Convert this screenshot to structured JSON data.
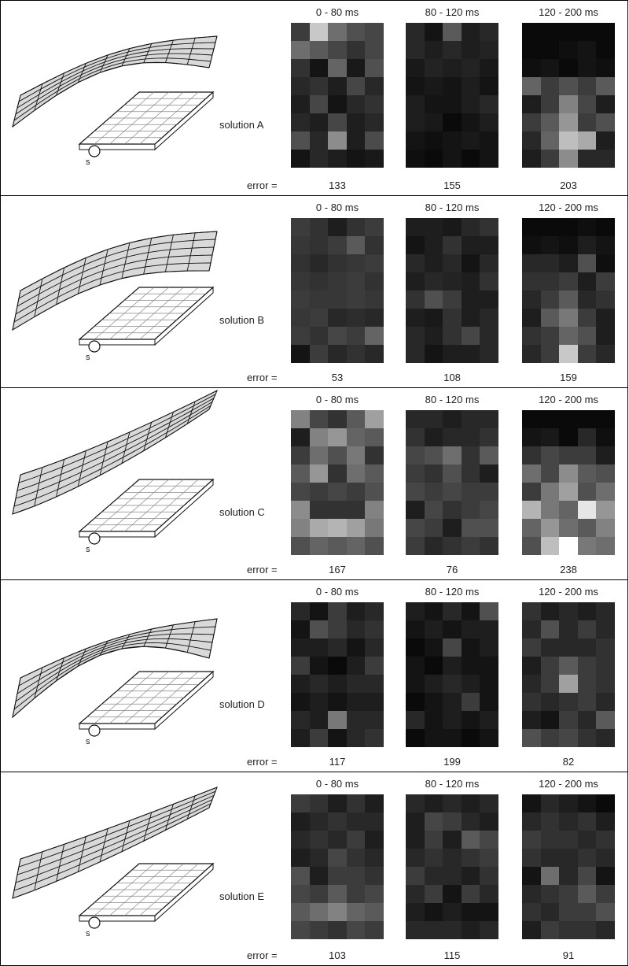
{
  "error_label": "error =",
  "source_label": "s",
  "panels": [
    {
      "label": "solution A",
      "surface": "A",
      "columns": [
        {
          "time": "0 - 80 ms",
          "error": "133",
          "cells": [
            [
              60,
              200,
              110,
              80,
              70
            ],
            [
              110,
              90,
              70,
              50,
              70
            ],
            [
              50,
              20,
              100,
              25,
              80
            ],
            [
              40,
              50,
              30,
              70,
              40
            ],
            [
              30,
              70,
              20,
              40,
              50
            ],
            [
              40,
              30,
              70,
              30,
              40
            ],
            [
              80,
              40,
              140,
              30,
              75
            ],
            [
              20,
              40,
              30,
              20,
              25
            ]
          ]
        },
        {
          "time": "80 - 120 ms",
          "error": "155",
          "cells": [
            [
              40,
              20,
              90,
              30,
              40
            ],
            [
              40,
              30,
              40,
              30,
              35
            ],
            [
              25,
              35,
              30,
              35,
              25
            ],
            [
              20,
              25,
              20,
              30,
              20
            ],
            [
              30,
              20,
              20,
              30,
              40
            ],
            [
              30,
              25,
              10,
              20,
              30
            ],
            [
              20,
              15,
              20,
              25,
              20
            ],
            [
              15,
              10,
              20,
              10,
              20
            ]
          ]
        },
        {
          "time": "120 - 200 ms",
          "error": "203",
          "cells": [
            [
              10,
              10,
              10,
              10,
              10
            ],
            [
              10,
              10,
              15,
              20,
              10
            ],
            [
              15,
              20,
              10,
              20,
              15
            ],
            [
              100,
              60,
              80,
              60,
              90
            ],
            [
              30,
              60,
              130,
              70,
              30
            ],
            [
              60,
              90,
              150,
              60,
              80
            ],
            [
              40,
              100,
              190,
              170,
              30
            ],
            [
              30,
              60,
              140,
              40,
              40
            ]
          ]
        }
      ]
    },
    {
      "label": "solution B",
      "surface": "B",
      "columns": [
        {
          "time": "0 - 80 ms",
          "error": "53",
          "cells": [
            [
              60,
              50,
              30,
              50,
              60
            ],
            [
              55,
              50,
              60,
              90,
              50
            ],
            [
              50,
              40,
              50,
              55,
              60
            ],
            [
              55,
              50,
              55,
              60,
              50
            ],
            [
              60,
              55,
              55,
              60,
              55
            ],
            [
              55,
              60,
              40,
              45,
              40
            ],
            [
              60,
              50,
              70,
              60,
              100
            ],
            [
              20,
              60,
              40,
              50,
              40
            ]
          ]
        },
        {
          "time": "80 - 120 ms",
          "error": "108",
          "cells": [
            [
              30,
              30,
              25,
              40,
              50
            ],
            [
              20,
              30,
              50,
              30,
              30
            ],
            [
              40,
              30,
              40,
              20,
              40
            ],
            [
              30,
              40,
              35,
              30,
              50
            ],
            [
              50,
              80,
              60,
              30,
              30
            ],
            [
              30,
              25,
              50,
              30,
              40
            ],
            [
              40,
              30,
              50,
              70,
              40
            ],
            [
              40,
              20,
              30,
              30,
              40
            ]
          ]
        },
        {
          "time": "120 - 200 ms",
          "error": "159",
          "cells": [
            [
              10,
              10,
              10,
              15,
              10
            ],
            [
              15,
              20,
              15,
              30,
              20
            ],
            [
              40,
              40,
              30,
              80,
              15
            ],
            [
              50,
              50,
              60,
              30,
              60
            ],
            [
              40,
              60,
              90,
              40,
              50
            ],
            [
              30,
              90,
              120,
              60,
              30
            ],
            [
              50,
              60,
              100,
              80,
              30
            ],
            [
              40,
              60,
              200,
              60,
              40
            ]
          ]
        }
      ]
    },
    {
      "label": "solution C",
      "surface": "C",
      "columns": [
        {
          "time": "0 - 80 ms",
          "error": "167",
          "cells": [
            [
              130,
              70,
              50,
              90,
              160
            ],
            [
              30,
              130,
              150,
              100,
              90
            ],
            [
              60,
              110,
              80,
              120,
              50
            ],
            [
              90,
              150,
              50,
              110,
              90
            ],
            [
              70,
              60,
              70,
              60,
              80
            ],
            [
              140,
              50,
              50,
              50,
              130
            ],
            [
              130,
              170,
              180,
              160,
              120
            ],
            [
              80,
              100,
              90,
              100,
              80
            ]
          ]
        },
        {
          "time": "80 - 120 ms",
          "error": "76",
          "cells": [
            [
              40,
              40,
              30,
              40,
              40
            ],
            [
              50,
              30,
              40,
              40,
              50
            ],
            [
              70,
              80,
              110,
              50,
              90
            ],
            [
              60,
              50,
              80,
              50,
              30
            ],
            [
              70,
              60,
              70,
              60,
              60
            ],
            [
              30,
              70,
              50,
              60,
              70
            ],
            [
              70,
              60,
              30,
              80,
              80
            ],
            [
              60,
              40,
              50,
              60,
              50
            ]
          ]
        },
        {
          "time": "120 - 200 ms",
          "error": "238",
          "cells": [
            [
              10,
              10,
              10,
              10,
              10
            ],
            [
              20,
              25,
              10,
              40,
              15
            ],
            [
              50,
              70,
              60,
              60,
              30
            ],
            [
              110,
              70,
              140,
              90,
              80
            ],
            [
              60,
              120,
              160,
              80,
              110
            ],
            [
              180,
              120,
              100,
              230,
              150
            ],
            [
              100,
              150,
              110,
              90,
              130
            ],
            [
              80,
              190,
              255,
              120,
              110
            ]
          ]
        }
      ]
    },
    {
      "label": "solution D",
      "surface": "D",
      "columns": [
        {
          "time": "0 - 80 ms",
          "error": "117",
          "cells": [
            [
              40,
              20,
              60,
              30,
              40
            ],
            [
              20,
              80,
              60,
              40,
              50
            ],
            [
              30,
              30,
              40,
              20,
              40
            ],
            [
              60,
              20,
              10,
              30,
              60
            ],
            [
              30,
              40,
              30,
              40,
              40
            ],
            [
              20,
              30,
              20,
              30,
              30
            ],
            [
              40,
              30,
              120,
              40,
              40
            ],
            [
              30,
              60,
              20,
              40,
              50
            ]
          ]
        },
        {
          "time": "80 - 120 ms",
          "error": "199",
          "cells": [
            [
              30,
              20,
              40,
              20,
              80
            ],
            [
              20,
              30,
              20,
              30,
              30
            ],
            [
              10,
              20,
              70,
              20,
              30
            ],
            [
              20,
              10,
              30,
              20,
              20
            ],
            [
              20,
              30,
              40,
              30,
              20
            ],
            [
              10,
              20,
              30,
              60,
              20
            ],
            [
              40,
              20,
              30,
              20,
              30
            ],
            [
              10,
              20,
              20,
              10,
              20
            ]
          ]
        },
        {
          "time": "120 - 200 ms",
          "error": "82",
          "cells": [
            [
              50,
              30,
              40,
              30,
              40
            ],
            [
              40,
              80,
              40,
              60,
              40
            ],
            [
              60,
              40,
              40,
              40,
              50
            ],
            [
              30,
              60,
              90,
              60,
              50
            ],
            [
              40,
              60,
              160,
              60,
              50
            ],
            [
              50,
              40,
              50,
              60,
              40
            ],
            [
              30,
              20,
              60,
              40,
              90
            ],
            [
              80,
              60,
              70,
              50,
              40
            ]
          ]
        }
      ]
    },
    {
      "label": "solution E",
      "surface": "E",
      "columns": [
        {
          "time": "0 - 80 ms",
          "error": "103",
          "cells": [
            [
              60,
              50,
              30,
              50,
              30
            ],
            [
              30,
              40,
              50,
              40,
              40
            ],
            [
              40,
              50,
              40,
              60,
              30
            ],
            [
              30,
              40,
              70,
              50,
              40
            ],
            [
              80,
              30,
              60,
              60,
              50
            ],
            [
              70,
              60,
              90,
              60,
              70
            ],
            [
              90,
              110,
              130,
              100,
              90
            ],
            [
              70,
              60,
              50,
              70,
              60
            ]
          ]
        },
        {
          "time": "80 - 120 ms",
          "error": "115",
          "cells": [
            [
              40,
              30,
              40,
              30,
              40
            ],
            [
              30,
              70,
              60,
              40,
              30
            ],
            [
              30,
              60,
              30,
              90,
              70
            ],
            [
              40,
              50,
              40,
              50,
              60
            ],
            [
              60,
              40,
              40,
              30,
              50
            ],
            [
              40,
              60,
              20,
              60,
              40
            ],
            [
              30,
              20,
              30,
              20,
              20
            ],
            [
              40,
              40,
              40,
              30,
              40
            ]
          ]
        },
        {
          "time": "120 - 200 ms",
          "error": "91",
          "cells": [
            [
              20,
              40,
              30,
              20,
              10
            ],
            [
              40,
              50,
              40,
              50,
              30
            ],
            [
              60,
              50,
              50,
              40,
              50
            ],
            [
              50,
              40,
              40,
              50,
              40
            ],
            [
              20,
              110,
              40,
              70,
              20
            ],
            [
              40,
              50,
              60,
              90,
              60
            ],
            [
              50,
              40,
              60,
              60,
              80
            ],
            [
              30,
              60,
              50,
              50,
              40
            ]
          ]
        }
      ]
    }
  ]
}
